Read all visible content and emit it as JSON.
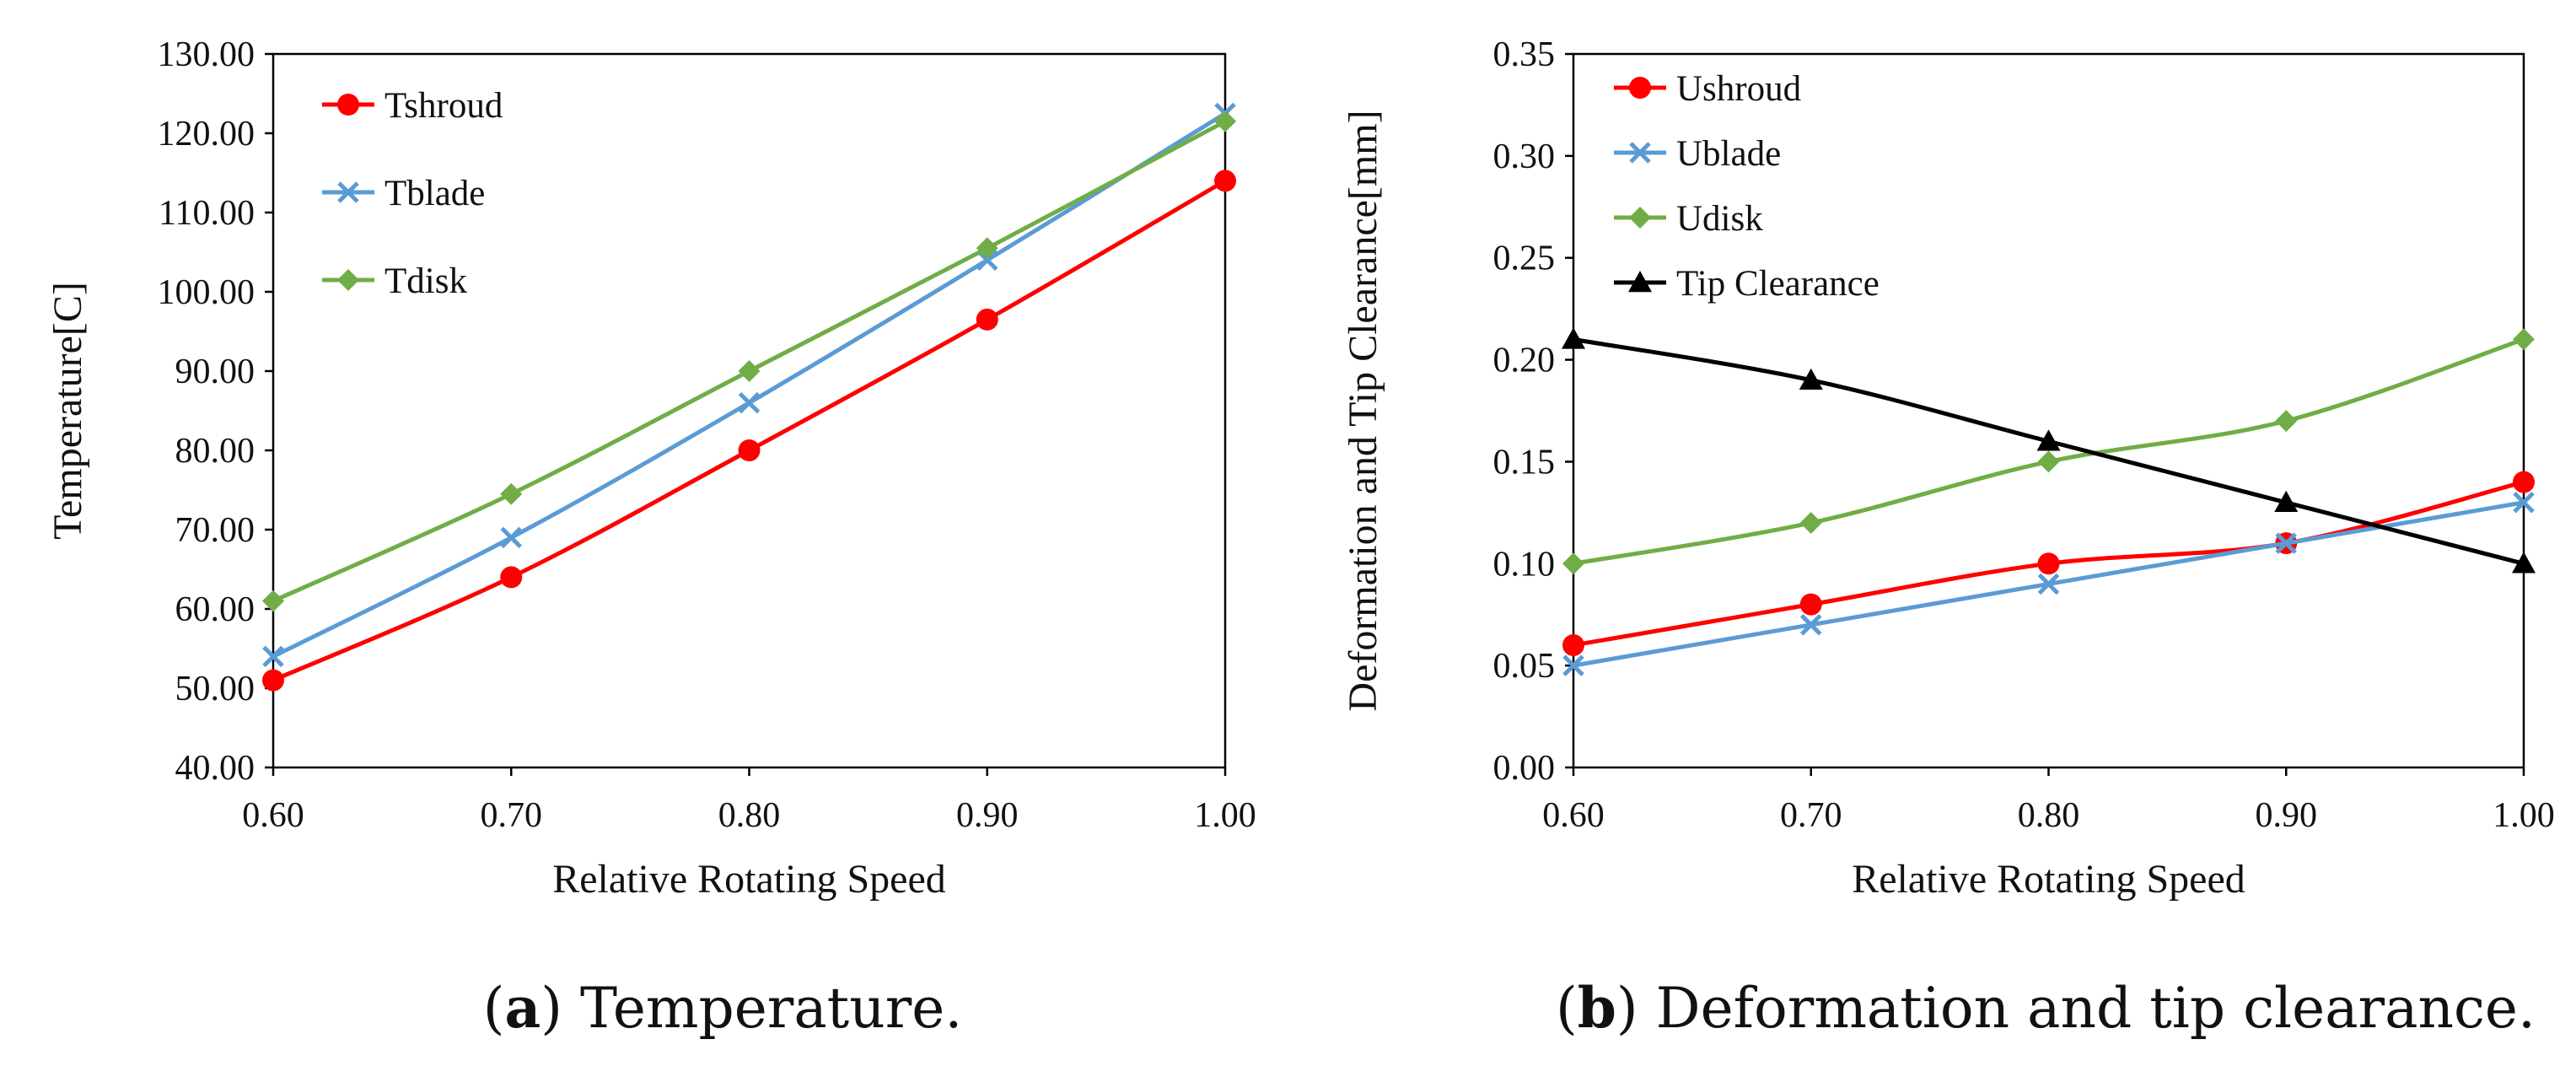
{
  "chart_data": [
    {
      "type": "line",
      "panel": "a",
      "caption_letter": "a",
      "caption_text": "Temperature.",
      "xlabel": "Relative Rotating Speed",
      "ylabel": "Temperature[C]",
      "x": [
        0.6,
        0.7,
        0.8,
        0.9,
        1.0
      ],
      "xlim": [
        0.6,
        1.0
      ],
      "ylim": [
        40,
        130
      ],
      "xticks": [
        "0.60",
        "0.70",
        "0.80",
        "0.90",
        "1.00"
      ],
      "yticks": [
        "40.00",
        "50.00",
        "60.00",
        "70.00",
        "80.00",
        "90.00",
        "100.00",
        "110.00",
        "120.00",
        "130.00"
      ],
      "legend_position": "top-left",
      "series": [
        {
          "name": "Tshroud",
          "color": "#ff0000",
          "marker": "circle",
          "values": [
            51,
            64,
            80,
            96.5,
            114
          ]
        },
        {
          "name": "Tblade",
          "color": "#5b9bd5",
          "marker": "x",
          "values": [
            54,
            69,
            86,
            104,
            122.5
          ]
        },
        {
          "name": "Tdisk",
          "color": "#70ad47",
          "marker": "diamond",
          "values": [
            61,
            74.5,
            90,
            105.5,
            121.5
          ]
        }
      ]
    },
    {
      "type": "line",
      "panel": "b",
      "caption_letter": "b",
      "caption_text": "Deformation and tip clearance.",
      "xlabel": "Relative Rotating Speed",
      "ylabel": "Deformation and Tip Clearance[mm]",
      "x": [
        0.6,
        0.7,
        0.8,
        0.9,
        1.0
      ],
      "xlim": [
        0.6,
        1.0
      ],
      "ylim": [
        0,
        0.35
      ],
      "xticks": [
        "0.60",
        "0.70",
        "0.80",
        "0.90",
        "1.00"
      ],
      "yticks": [
        "0.00",
        "0.05",
        "0.10",
        "0.15",
        "0.20",
        "0.25",
        "0.30",
        "0.35"
      ],
      "legend_position": "top-left",
      "series": [
        {
          "name": "Ushroud",
          "color": "#ff0000",
          "marker": "circle",
          "values": [
            0.06,
            0.08,
            0.1,
            0.11,
            0.14
          ]
        },
        {
          "name": "Ublade",
          "color": "#5b9bd5",
          "marker": "x",
          "values": [
            0.05,
            0.07,
            0.09,
            0.11,
            0.13
          ]
        },
        {
          "name": "Udisk",
          "color": "#70ad47",
          "marker": "diamond",
          "values": [
            0.1,
            0.12,
            0.15,
            0.17,
            0.21
          ]
        },
        {
          "name": "Tip Clearance",
          "color": "#000000",
          "marker": "triangle",
          "values": [
            0.21,
            0.19,
            0.16,
            0.13,
            0.1
          ]
        }
      ]
    }
  ]
}
